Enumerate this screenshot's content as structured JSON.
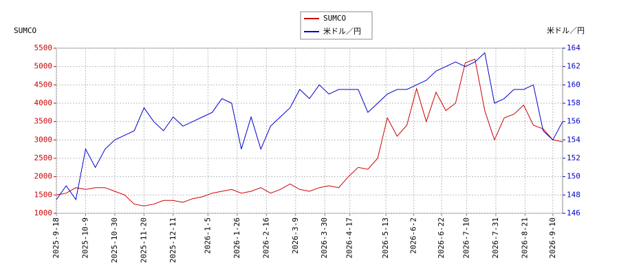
{
  "chart_data": {
    "type": "line",
    "y_label": "SUMCO",
    "y2_label": "米ドル／円",
    "x": [
      "2025-9-18",
      "2025-9-25",
      "2025-10-2",
      "2025-10-9",
      "2025-10-16",
      "2025-10-23",
      "2025-10-30",
      "2025-11-6",
      "2025-11-13",
      "2025-11-20",
      "2025-11-27",
      "2025-12-4",
      "2025-12-11",
      "2025-12-18",
      "2025-12-25",
      "2026-1-1",
      "2026-1-8",
      "2026-1-15",
      "2026-1-22",
      "2026-1-29",
      "2026-2-5",
      "2026-2-12",
      "2026-2-19",
      "2026-2-26",
      "2026-3-5",
      "2026-3-12",
      "2026-3-19",
      "2026-3-26",
      "2026-4-2",
      "2026-4-9",
      "2026-4-16",
      "2026-4-23",
      "2026-4-30",
      "2026-5-7",
      "2026-5-14",
      "2026-5-21",
      "2026-5-28",
      "2026-6-4",
      "2026-6-11",
      "2026-6-18",
      "2026-6-25",
      "2026-7-2",
      "2026-7-9",
      "2026-7-16",
      "2026-7-23",
      "2026-7-30",
      "2026-8-6",
      "2026-8-13",
      "2026-8-20",
      "2026-8-27",
      "2026-9-3",
      "2026-9-10",
      "2026-9-17"
    ],
    "xlim": [
      "2025-9-18",
      "2026-9-17"
    ],
    "xticks": [
      "2025-9-18",
      "2025-10-9",
      "2025-10-30",
      "2025-11-20",
      "2025-12-11",
      "2026-1-5",
      "2026-1-26",
      "2026-2-16",
      "2026-3-9",
      "2026-3-30",
      "2026-4-17",
      "2026-5-13",
      "2026-6-2",
      "2026-6-22",
      "2026-7-10",
      "2026-7-31",
      "2026-8-21",
      "2026-9-10"
    ],
    "ylim": [
      1000,
      5500
    ],
    "yticks": [
      1000,
      1500,
      2000,
      2500,
      3000,
      3500,
      4000,
      4500,
      5000,
      5500
    ],
    "y2lim": [
      146,
      164
    ],
    "y2ticks": [
      146,
      148,
      150,
      152,
      154,
      156,
      158,
      160,
      162,
      164
    ],
    "grid": true,
    "legend": "top",
    "series": [
      {
        "name": "SUMCO",
        "color": "#cc0000",
        "values": [
          1500,
          1550,
          1700,
          1650,
          1700,
          1700,
          1600,
          1500,
          1250,
          1200,
          1250,
          1350,
          1350,
          1300,
          1400,
          1450,
          1550,
          1600,
          1650,
          1550,
          1600,
          1700,
          1550,
          1650,
          1800,
          1650,
          1600,
          1700,
          1750,
          1700,
          2000,
          2250,
          2200,
          2500,
          3600,
          3100,
          3400,
          4400,
          3500,
          4300,
          3800,
          4000,
          5100,
          5200,
          3800,
          3000,
          3600,
          3700,
          3950,
          3400,
          3300,
          3000,
          2950
        ]
      },
      {
        "name": "米ドル／円",
        "color": "#0000cc",
        "axis": "y2",
        "values": [
          147.5,
          149,
          147.5,
          153,
          151,
          153,
          154,
          154.5,
          155,
          157.5,
          156,
          155,
          156.5,
          155.5,
          156,
          156.5,
          157,
          158.5,
          158,
          153,
          156.5,
          153,
          155.5,
          156.5,
          157.5,
          159.5,
          158.5,
          160,
          159,
          159.5,
          159.5,
          159.5,
          157,
          158,
          159,
          159.5,
          159.5,
          160,
          160.5,
          161.5,
          162,
          162.5,
          162,
          162.5,
          163.5,
          158,
          158.5,
          159.5,
          159.5,
          160,
          155,
          154,
          156
        ]
      }
    ]
  }
}
